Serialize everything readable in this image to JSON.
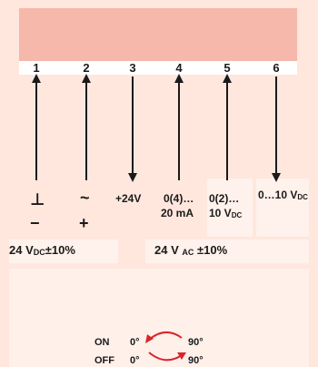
{
  "terminals": [
    "1",
    "2",
    "3",
    "4",
    "5",
    "6"
  ],
  "labels": {
    "t1_top": "⊥",
    "t1_bottom": "−",
    "t2_top": "~",
    "t2_bottom": "+",
    "t3": "+24V",
    "t4_line1": "0(4)…",
    "t4_line2": "20 mA",
    "t5_line1": "0(2)…",
    "t5_line2_main": "10 V",
    "t5_line2_sub": "DC",
    "t6_main": "0…10 V",
    "t6_sub": "DC"
  },
  "supply": {
    "dc_main": "24 V",
    "dc_sub": "DC",
    "dc_tol": "±10%",
    "ac_main": "24 V ",
    "ac_sub": "AC",
    "ac_tol": " ±10%"
  },
  "rotation": {
    "on_label": "ON",
    "on_from": "0°",
    "on_to": "90°",
    "off_label": "OFF",
    "off_from": "0°",
    "off_to": "90°"
  },
  "colors": {
    "device": "#f5b8ab",
    "background": "#ffe7de",
    "arrow_red": "#d9262c"
  }
}
